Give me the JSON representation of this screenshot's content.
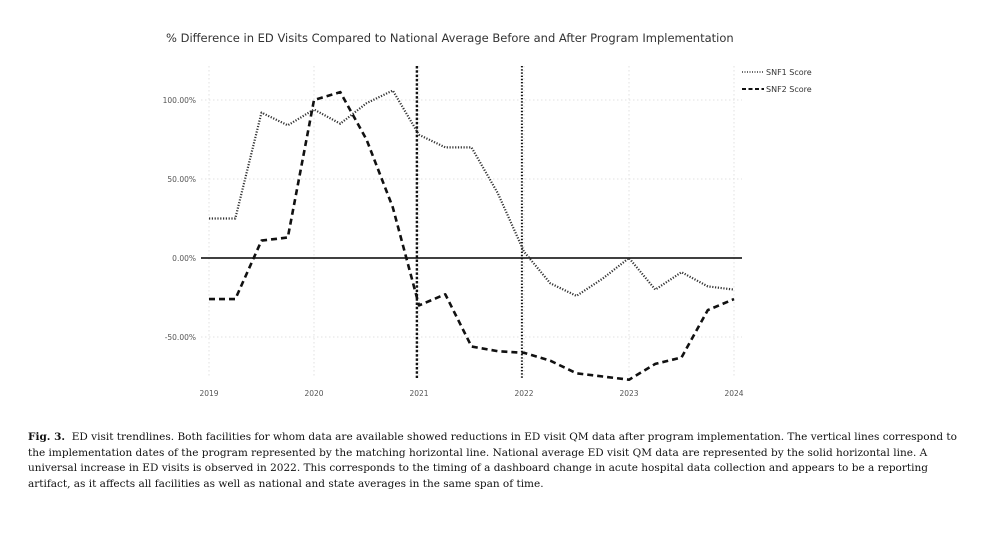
{
  "chart_data": {
    "type": "line",
    "title": "% Difference in ED Visits Compared to National Average Before and After Program Implementation",
    "xlabel": "",
    "ylabel": "",
    "xlim": [
      2019,
      2024
    ],
    "ylim": [
      -80,
      122
    ],
    "x_ticks": [
      2019,
      2020,
      2021,
      2022,
      2023,
      2024
    ],
    "x_tick_labels": [
      "2019",
      "2020",
      "2021",
      "2022",
      "2023",
      "2024"
    ],
    "y_ticks": [
      100,
      50,
      0,
      -50
    ],
    "y_tick_labels": [
      "100.00%",
      "50.00%",
      "0.00%",
      "-50.00%"
    ],
    "grid": true,
    "legend_position": "top-right",
    "reference_lines": {
      "horizontal": [
        0
      ],
      "vertical": [
        {
          "x": 2020.98,
          "series": "SNF2 Score"
        },
        {
          "x": 2021.98,
          "series": "SNF1 Score"
        }
      ]
    },
    "series": [
      {
        "name": "SNF1 Score",
        "style": "dotted",
        "color": "#333333",
        "points": [
          [
            2019.0,
            25
          ],
          [
            2019.25,
            25
          ],
          [
            2019.5,
            92
          ],
          [
            2019.75,
            84
          ],
          [
            2020.0,
            94
          ],
          [
            2020.25,
            85
          ],
          [
            2020.5,
            98
          ],
          [
            2020.75,
            106
          ],
          [
            2021.0,
            78
          ],
          [
            2021.25,
            70
          ],
          [
            2021.5,
            70
          ],
          [
            2021.75,
            41
          ],
          [
            2022.0,
            4
          ],
          [
            2022.25,
            -16
          ],
          [
            2022.5,
            -24
          ],
          [
            2022.75,
            -13
          ],
          [
            2023.0,
            0
          ],
          [
            2023.25,
            -20
          ],
          [
            2023.5,
            -9
          ],
          [
            2023.75,
            -18
          ],
          [
            2024.0,
            -20
          ]
        ]
      },
      {
        "name": "SNF2 Score",
        "style": "dashed",
        "color": "#111111",
        "points": [
          [
            2019.0,
            -26
          ],
          [
            2019.25,
            -26
          ],
          [
            2019.5,
            11
          ],
          [
            2019.75,
            13
          ],
          [
            2020.0,
            100
          ],
          [
            2020.25,
            105
          ],
          [
            2020.5,
            75
          ],
          [
            2020.75,
            32
          ],
          [
            2021.0,
            -30
          ],
          [
            2021.25,
            -23
          ],
          [
            2021.5,
            -56
          ],
          [
            2021.75,
            -59
          ],
          [
            2022.0,
            -60
          ],
          [
            2022.25,
            -65
          ],
          [
            2022.5,
            -73
          ],
          [
            2022.75,
            -75
          ],
          [
            2023.0,
            -77
          ],
          [
            2023.25,
            -67
          ],
          [
            2023.5,
            -63
          ],
          [
            2023.75,
            -33
          ],
          [
            2024.0,
            -26
          ]
        ]
      }
    ]
  },
  "caption": {
    "label": "Fig. 3.",
    "text": "ED visit trendlines. Both facilities for whom data are available showed reductions in ED visit QM data after program implementation. The vertical lines correspond to the implementation dates of the program represented by the matching horizontal line. National average ED visit QM data are represented by the solid horizontal line. A universal increase in ED visits is observed in 2022. This corresponds to the timing of a dashboard change in acute hospital data collection and appears to be a reporting artifact, as it affects all facilities as well as national and state averages in the same span of time."
  }
}
